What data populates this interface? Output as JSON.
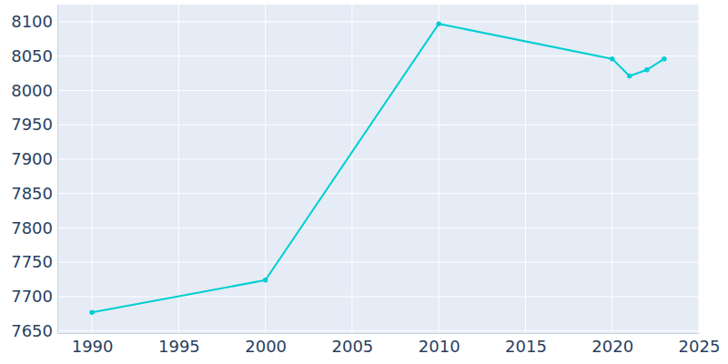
{
  "chart_data": {
    "type": "line",
    "x": [
      1990,
      2000,
      2010,
      2020,
      2021,
      2022,
      2023
    ],
    "values": [
      7677,
      7724,
      8097,
      8046,
      8021,
      8030,
      8046
    ],
    "color": "#00ced1",
    "marker": "circle",
    "xlim": [
      1988,
      2025
    ],
    "xticks": [
      1990,
      1995,
      2000,
      2005,
      2010,
      2015,
      2020,
      2025
    ],
    "ylim": [
      7647,
      8125
    ],
    "yticks": [
      7650,
      7700,
      7750,
      7800,
      7850,
      7900,
      7950,
      8000,
      8050,
      8100
    ],
    "grid": true
  }
}
